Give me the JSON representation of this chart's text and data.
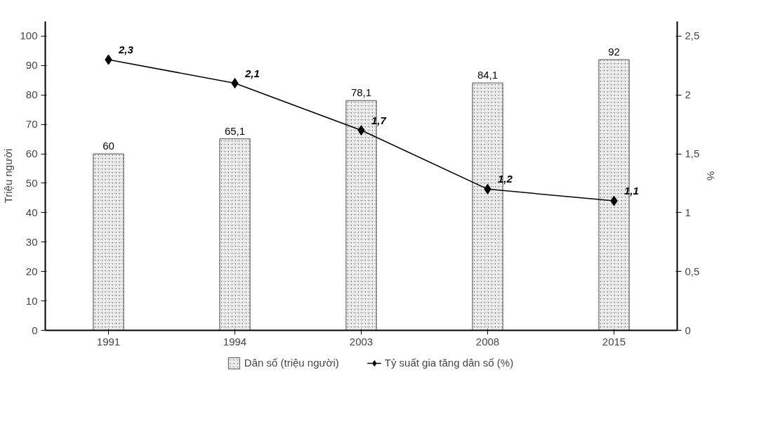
{
  "chart_data": {
    "type": "bar",
    "ylabel": "Triệu người",
    "y2label": "%",
    "categories": [
      "1991",
      "1994",
      "2003",
      "2008",
      "2015"
    ],
    "series": [
      {
        "name": "Dân số (triệu người)",
        "color": "#555555",
        "values": [
          60,
          65.1,
          78.1,
          84.1,
          92
        ],
        "value_labels": [
          "60",
          "65,1",
          "78,1",
          "84,1",
          "92"
        ]
      },
      {
        "name": "Tỷ suất gia tăng dân số (%)",
        "type": "line",
        "axis": "y2",
        "color": "#000000",
        "marker": "diamond",
        "values": [
          2.3,
          2.1,
          1.7,
          1.2,
          1.1
        ],
        "value_labels": [
          "2,3",
          "2,1",
          "1,7",
          "1,2",
          "1,1"
        ]
      }
    ],
    "ylim": [
      0,
      105
    ],
    "yticks": [
      0,
      10,
      20,
      30,
      40,
      50,
      60,
      70,
      80,
      90,
      100
    ],
    "y2lim": [
      0,
      2.625
    ],
    "y2ticks": [
      0,
      {
        "value": 0.5,
        "label": "0,5"
      },
      1,
      {
        "value": 1.5,
        "label": "1,5"
      },
      2,
      {
        "value": 2.5,
        "label": "2,5"
      }
    ],
    "grid": false,
    "legend": "bottom"
  }
}
